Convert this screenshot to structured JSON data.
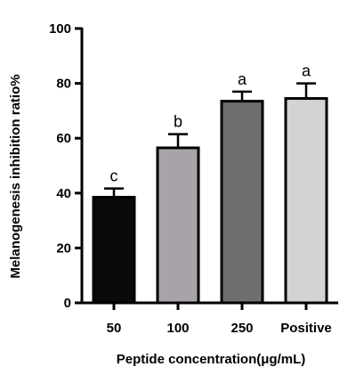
{
  "chart_data": {
    "type": "bar",
    "categories": [
      "50",
      "100",
      "250",
      "Positive"
    ],
    "values": [
      38.5,
      56.5,
      73.5,
      74.5
    ],
    "errors": [
      3.2,
      5.0,
      3.5,
      5.5
    ],
    "significance": [
      "c",
      "b",
      "a",
      "a"
    ],
    "bar_colors": [
      "#0a0a0a",
      "#a8a3a8",
      "#6e6e6e",
      "#d3d3d3"
    ],
    "ylabel": "Melanogenesis inhibition ratio%",
    "xlabel": "Peptide concentration(μg/mL)",
    "ylim": [
      0,
      100
    ],
    "yticks": [
      0,
      20,
      40,
      60,
      80,
      100
    ],
    "grid": false
  }
}
